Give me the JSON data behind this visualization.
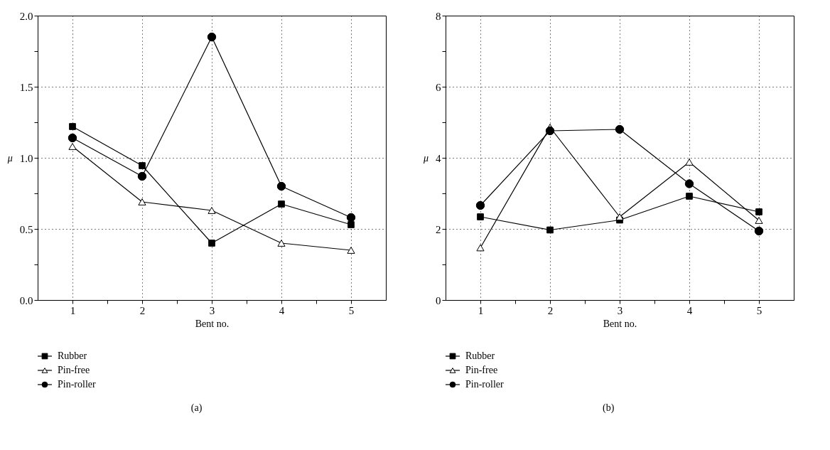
{
  "chart_data": [
    {
      "type": "line",
      "title": "(a)",
      "xlabel": "Bent no.",
      "ylabel": "μ",
      "x": [
        1,
        2,
        3,
        4,
        5
      ],
      "xlim": [
        0.5,
        5.5
      ],
      "xticks": [
        1,
        {
          "value": 1.5,
          "label": null
        },
        2,
        {
          "value": 2.5,
          "label": null
        },
        3,
        {
          "value": 3.5,
          "label": null
        },
        4,
        {
          "value": 4.5,
          "label": null
        },
        5
      ],
      "ylim": [
        0,
        2
      ],
      "yticks": [
        {
          "value": 0,
          "label": "0.0"
        },
        {
          "value": 0.25,
          "label": null
        },
        0.5,
        {
          "value": 0.75,
          "label": null
        },
        {
          "value": 1,
          "label": "1.0"
        },
        {
          "value": 1.25,
          "label": null
        },
        1.5,
        {
          "value": 1.75,
          "label": null
        },
        {
          "value": 2,
          "label": "2.0"
        }
      ],
      "grid": true,
      "legend": "bottom left",
      "line_style": "solid",
      "series": [
        {
          "name": "Rubber",
          "color": "#000000",
          "marker": "square",
          "values": [
            1.22,
            0.945,
            0.4,
            0.675,
            0.53
          ]
        },
        {
          "name": "Pin-free",
          "color": "#000000",
          "marker": "triangle",
          "values": [
            1.08,
            0.69,
            0.63,
            0.4,
            0.35
          ]
        },
        {
          "name": "Pin-roller",
          "color": "#000000",
          "marker": "circle",
          "values": [
            1.14,
            0.87,
            1.85,
            0.8,
            0.58
          ]
        }
      ]
    },
    {
      "type": "line",
      "title": "(b)",
      "xlabel": "Bent no.",
      "ylabel": "μ",
      "x": [
        1,
        2,
        3,
        4,
        5
      ],
      "xlim": [
        0.5,
        5.5
      ],
      "xticks": [
        1,
        {
          "value": 1.5,
          "label": null
        },
        2,
        {
          "value": 2.5,
          "label": null
        },
        3,
        {
          "value": 3.5,
          "label": null
        },
        4,
        {
          "value": 4.5,
          "label": null
        },
        5
      ],
      "ylim": [
        0,
        8
      ],
      "yticks": [
        0,
        {
          "value": 1,
          "label": null
        },
        2,
        {
          "value": 3,
          "label": null
        },
        4,
        {
          "value": 5,
          "label": null
        },
        6,
        {
          "value": 7,
          "label": null
        },
        8
      ],
      "grid": true,
      "legend": "bottom left",
      "line_style": "solid",
      "series": [
        {
          "name": "Rubber",
          "color": "#000000",
          "marker": "square",
          "values": [
            2.34,
            1.97,
            2.25,
            2.92,
            2.48
          ]
        },
        {
          "name": "Pin-free",
          "color": "#000000",
          "marker": "triangle",
          "values": [
            1.47,
            4.86,
            2.34,
            3.88,
            2.24
          ]
        },
        {
          "name": "Pin-roller",
          "color": "#000000",
          "marker": "circle",
          "values": [
            2.66,
            4.76,
            4.8,
            3.27,
            1.94
          ]
        }
      ]
    }
  ]
}
